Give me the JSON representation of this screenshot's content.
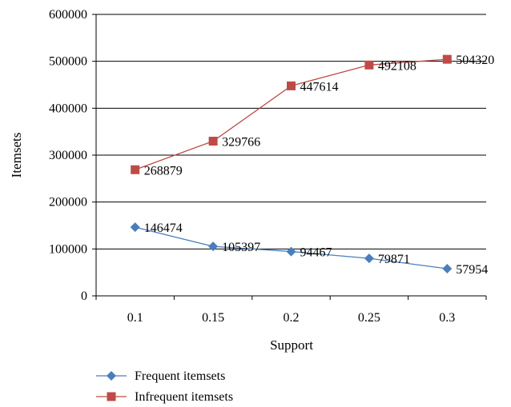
{
  "chart_data": {
    "type": "line",
    "categories": [
      "0.1",
      "0.15",
      "0.2",
      "0.25",
      "0.3"
    ],
    "xlabel": "Support",
    "ylabel": "Itemsets",
    "ylim": [
      0,
      600000
    ],
    "yticks": [
      "0",
      "100000",
      "200000",
      "300000",
      "400000",
      "500000",
      "600000"
    ],
    "grid": "horizontal",
    "legend_position": "bottom",
    "series": [
      {
        "name": "Frequent itemsets",
        "values": [
          146474,
          105397,
          94467,
          79871,
          57954
        ],
        "labels": [
          "146474",
          "105397",
          "94467",
          "79871",
          "57954"
        ],
        "color": "#4a7ebb",
        "marker": "diamond"
      },
      {
        "name": "Infrequent itemsets",
        "values": [
          268879,
          329766,
          447614,
          492108,
          504320
        ],
        "labels": [
          "268879",
          "329766",
          "447614",
          "492108",
          "504320"
        ],
        "color": "#be4b48",
        "marker": "square"
      }
    ]
  }
}
